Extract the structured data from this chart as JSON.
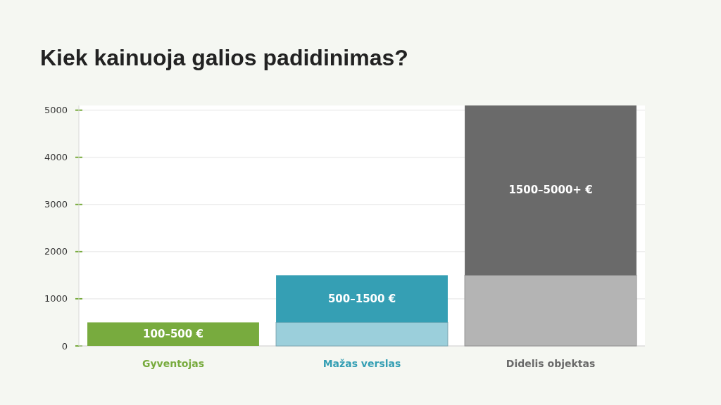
{
  "chart_data": {
    "type": "bar",
    "title": "Kiek kainuoja galios padidinimas?",
    "categories": [
      "Gyventojas",
      "Mažas verslas",
      "Didelis objektas"
    ],
    "stacked": true,
    "series": [
      {
        "colors": [
          null,
          "#9bcfdb",
          "#b4b4b4"
        ],
        "values": [
          null,
          500,
          1500
        ]
      },
      {
        "colors": [
          "#78ab3e",
          "#359fb4",
          "#6a6a6a"
        ],
        "values": [
          500,
          1000,
          3600
        ],
        "value_labels": [
          "100–500 €",
          "500–1500 €",
          "1500–5000+ €"
        ]
      }
    ],
    "ylim": [
      0,
      5100
    ],
    "yticks": [
      0,
      1000,
      2000,
      3000,
      4000,
      5000
    ],
    "grid": "y"
  }
}
